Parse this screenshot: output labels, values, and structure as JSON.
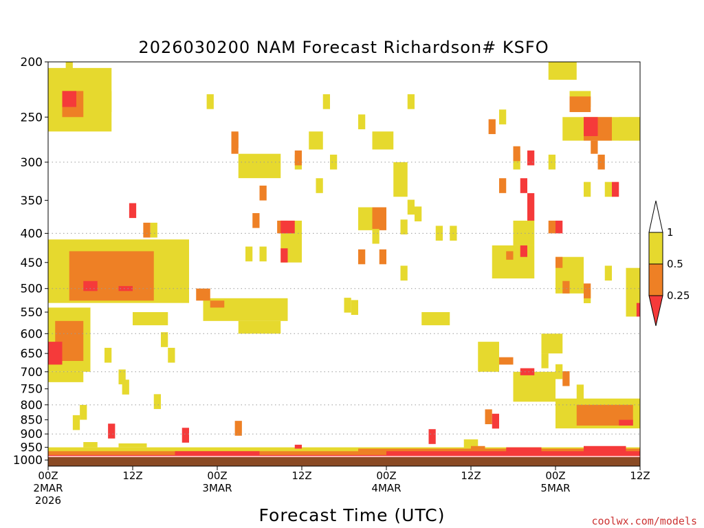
{
  "chart_data": {
    "type": "heatmap",
    "title": "2026030200 NAM Forecast Richardson# KSFO",
    "xlabel": "Forecast Time (UTC)",
    "credit": "coolwx.com/models",
    "y_ticks": [
      "200",
      "250",
      "300",
      "350",
      "400",
      "450",
      "500",
      "550",
      "600",
      "650",
      "700",
      "750",
      "800",
      "850",
      "900",
      "950",
      "1000"
    ],
    "y_range_hpa": [
      1000,
      200
    ],
    "x_range_hours": [
      0,
      84
    ],
    "x_ticks": [
      {
        "hour": 0,
        "line1": "00Z",
        "line2": "2MAR",
        "line3": "2026"
      },
      {
        "hour": 12,
        "line1": "12Z",
        "line2": "",
        "line3": ""
      },
      {
        "hour": 24,
        "line1": "00Z",
        "line2": "3MAR",
        "line3": ""
      },
      {
        "hour": 36,
        "line1": "12Z",
        "line2": "",
        "line3": ""
      },
      {
        "hour": 48,
        "line1": "00Z",
        "line2": "4MAR",
        "line3": ""
      },
      {
        "hour": 60,
        "line1": "12Z",
        "line2": "",
        "line3": ""
      },
      {
        "hour": 72,
        "line1": "00Z",
        "line2": "5MAR",
        "line3": ""
      },
      {
        "hour": 84,
        "line1": "12Z",
        "line2": "",
        "line3": ""
      }
    ],
    "dotted_gridlines_hpa": [
      300,
      400,
      500,
      600,
      700,
      800,
      900,
      1000
    ],
    "colorbar": {
      "labels": [
        "1",
        "0.5",
        "0.25"
      ],
      "levels": [
        {
          "range": "0.5–1",
          "color": "#e6d92e"
        },
        {
          "range": "0.25–0.5",
          "color": "#ee8025"
        },
        {
          "range": "0–0.25",
          "color": "#f53a3a"
        }
      ]
    },
    "colors": {
      "low": "#f53a3a",
      "mid": "#ee8025",
      "high": "#e6d92e",
      "ground": "#8a4a24"
    },
    "regions": [
      {
        "cls": "high",
        "t": [
          0,
          9
        ],
        "p": [
          205,
          265
        ]
      },
      {
        "cls": "mid",
        "t": [
          2,
          5
        ],
        "p": [
          225,
          250
        ]
      },
      {
        "cls": "low",
        "t": [
          2,
          4
        ],
        "p": [
          225,
          240
        ]
      },
      {
        "cls": "high",
        "t": [
          5,
          9
        ],
        "p": [
          225,
          245
        ]
      },
      {
        "cls": "high",
        "t": [
          2.5,
          3.5
        ],
        "p": [
          200,
          212
        ]
      },
      {
        "cls": "high",
        "t": [
          0,
          20
        ],
        "p": [
          410,
          530
        ]
      },
      {
        "cls": "mid",
        "t": [
          3,
          15
        ],
        "p": [
          430,
          525
        ]
      },
      {
        "cls": "low",
        "t": [
          5,
          7
        ],
        "p": [
          485,
          505
        ]
      },
      {
        "cls": "low",
        "t": [
          10,
          12
        ],
        "p": [
          495,
          505
        ]
      },
      {
        "cls": "high",
        "t": [
          0,
          6
        ],
        "p": [
          540,
          700
        ]
      },
      {
        "cls": "mid",
        "t": [
          1,
          5
        ],
        "p": [
          570,
          670
        ]
      },
      {
        "cls": "low",
        "t": [
          0,
          2
        ],
        "p": [
          620,
          680
        ]
      },
      {
        "cls": "high",
        "t": [
          0,
          5
        ],
        "p": [
          700,
          730
        ]
      },
      {
        "cls": "high",
        "t": [
          12,
          17
        ],
        "p": [
          550,
          580
        ]
      },
      {
        "cls": "high",
        "t": [
          22,
          34
        ],
        "p": [
          520,
          570
        ]
      },
      {
        "cls": "mid",
        "t": [
          21,
          23
        ],
        "p": [
          500,
          525
        ]
      },
      {
        "cls": "mid",
        "t": [
          23,
          25
        ],
        "p": [
          525,
          540
        ]
      },
      {
        "cls": "high",
        "t": [
          27,
          33
        ],
        "p": [
          570,
          600
        ]
      },
      {
        "cls": "high",
        "t": [
          27,
          33
        ],
        "p": [
          290,
          320
        ]
      },
      {
        "cls": "mid",
        "t": [
          26,
          27
        ],
        "p": [
          265,
          290
        ]
      },
      {
        "cls": "high",
        "t": [
          33,
          36
        ],
        "p": [
          380,
          450
        ]
      },
      {
        "cls": "mid",
        "t": [
          32.5,
          34
        ],
        "p": [
          380,
          400
        ]
      },
      {
        "cls": "low",
        "t": [
          33,
          35
        ],
        "p": [
          380,
          400
        ]
      },
      {
        "cls": "low",
        "t": [
          33,
          34
        ],
        "p": [
          425,
          450
        ]
      },
      {
        "cls": "high",
        "t": [
          37,
          39
        ],
        "p": [
          265,
          285
        ]
      },
      {
        "cls": "high",
        "t": [
          44,
          46
        ],
        "p": [
          360,
          395
        ]
      },
      {
        "cls": "mid",
        "t": [
          46,
          48
        ],
        "p": [
          360,
          395
        ]
      },
      {
        "cls": "high",
        "t": [
          46,
          49
        ],
        "p": [
          265,
          285
        ]
      },
      {
        "cls": "high",
        "t": [
          49,
          51
        ],
        "p": [
          300,
          345
        ]
      },
      {
        "cls": "high",
        "t": [
          53,
          57
        ],
        "p": [
          550,
          580
        ]
      },
      {
        "cls": "high",
        "t": [
          71,
          75
        ],
        "p": [
          200,
          215
        ]
      },
      {
        "cls": "high",
        "t": [
          74,
          77
        ],
        "p": [
          225,
          240
        ]
      },
      {
        "cls": "mid",
        "t": [
          74,
          77
        ],
        "p": [
          230,
          245
        ]
      },
      {
        "cls": "high",
        "t": [
          73,
          84
        ],
        "p": [
          250,
          275
        ]
      },
      {
        "cls": "mid",
        "t": [
          76,
          80
        ],
        "p": [
          250,
          275
        ]
      },
      {
        "cls": "low",
        "t": [
          76,
          78
        ],
        "p": [
          250,
          270
        ]
      },
      {
        "cls": "mid",
        "t": [
          77,
          78
        ],
        "p": [
          275,
          290
        ]
      },
      {
        "cls": "high",
        "t": [
          81,
          84
        ],
        "p": [
          250,
          275
        ]
      },
      {
        "cls": "high",
        "t": [
          63,
          69
        ],
        "p": [
          420,
          480
        ]
      },
      {
        "cls": "mid",
        "t": [
          65,
          66
        ],
        "p": [
          430,
          445
        ]
      },
      {
        "cls": "low",
        "t": [
          67,
          68
        ],
        "p": [
          420,
          440
        ]
      },
      {
        "cls": "high",
        "t": [
          66,
          69
        ],
        "p": [
          380,
          420
        ]
      },
      {
        "cls": "low",
        "t": [
          68,
          69
        ],
        "p": [
          340,
          380
        ]
      },
      {
        "cls": "high",
        "t": [
          72,
          76
        ],
        "p": [
          440,
          510
        ]
      },
      {
        "cls": "mid",
        "t": [
          72,
          73
        ],
        "p": [
          440,
          460
        ]
      },
      {
        "cls": "mid",
        "t": [
          73,
          74
        ],
        "p": [
          485,
          510
        ]
      },
      {
        "cls": "mid",
        "t": [
          71,
          72
        ],
        "p": [
          380,
          400
        ]
      },
      {
        "cls": "low",
        "t": [
          72,
          73
        ],
        "p": [
          380,
          400
        ]
      },
      {
        "cls": "high",
        "t": [
          61,
          64
        ],
        "p": [
          620,
          700
        ]
      },
      {
        "cls": "mid",
        "t": [
          64,
          66
        ],
        "p": [
          660,
          680
        ]
      },
      {
        "cls": "low",
        "t": [
          67,
          69
        ],
        "p": [
          690,
          710
        ]
      },
      {
        "cls": "high",
        "t": [
          66,
          72
        ],
        "p": [
          700,
          790
        ]
      },
      {
        "cls": "high",
        "t": [
          72,
          84
        ],
        "p": [
          780,
          880
        ]
      },
      {
        "cls": "mid",
        "t": [
          75,
          83
        ],
        "p": [
          800,
          870
        ]
      },
      {
        "cls": "low",
        "t": [
          81,
          83
        ],
        "p": [
          850,
          870
        ]
      },
      {
        "cls": "high",
        "t": [
          70,
          73
        ],
        "p": [
          600,
          650
        ]
      },
      {
        "cls": "high",
        "t": [
          82,
          84
        ],
        "p": [
          460,
          560
        ]
      },
      {
        "cls": "low",
        "t": [
          83.5,
          84
        ],
        "p": [
          530,
          560
        ]
      },
      {
        "cls": "high",
        "t": [
          59,
          61
        ],
        "p": [
          920,
          980
        ]
      },
      {
        "cls": "mid",
        "t": [
          60,
          62
        ],
        "p": [
          945,
          985
        ]
      },
      {
        "cls": "high",
        "t": [
          0,
          84
        ],
        "p": [
          950,
          985
        ]
      },
      {
        "cls": "mid",
        "t": [
          0,
          84
        ],
        "p": [
          965,
          990
        ]
      },
      {
        "cls": "low",
        "t": [
          0,
          84
        ],
        "p": [
          980,
          1000
        ]
      },
      {
        "cls": "low",
        "t": [
          18,
          30
        ],
        "p": [
          965,
          1000
        ]
      },
      {
        "cls": "mid",
        "t": [
          44,
          84
        ],
        "p": [
          955,
          975
        ]
      },
      {
        "cls": "low",
        "t": [
          48,
          84
        ],
        "p": [
          965,
          1000
        ]
      },
      {
        "cls": "low",
        "t": [
          65,
          70
        ],
        "p": [
          950,
          1000
        ]
      },
      {
        "cls": "low",
        "t": [
          76,
          82
        ],
        "p": [
          945,
          1000
        ]
      },
      {
        "cls": "low",
        "t": [
          35,
          36
        ],
        "p": [
          940,
          955
        ]
      },
      {
        "cls": "high",
        "t": [
          5,
          7
        ],
        "p": [
          930,
          950
        ]
      },
      {
        "cls": "high",
        "t": [
          10,
          14
        ],
        "p": [
          935,
          950
        ]
      }
    ],
    "cells": [
      {
        "cls": "high",
        "t": 23,
        "p": 235
      },
      {
        "cls": "mid",
        "t": 26.5,
        "p": 275
      },
      {
        "cls": "high",
        "t": 39.5,
        "p": 235
      },
      {
        "cls": "high",
        "t": 44.5,
        "p": 255
      },
      {
        "cls": "high",
        "t": 51.5,
        "p": 235
      },
      {
        "cls": "high",
        "t": 51.5,
        "p": 360
      },
      {
        "cls": "low",
        "t": 12,
        "p": 365
      },
      {
        "cls": "mid",
        "t": 14,
        "p": 395
      },
      {
        "cls": "high",
        "t": 15,
        "p": 395
      },
      {
        "cls": "mid",
        "t": 30.5,
        "p": 340
      },
      {
        "cls": "mid",
        "t": 29.5,
        "p": 380
      },
      {
        "cls": "high",
        "t": 28.5,
        "p": 435
      },
      {
        "cls": "high",
        "t": 30.5,
        "p": 435
      },
      {
        "cls": "high",
        "t": 35.5,
        "p": 300
      },
      {
        "cls": "mid",
        "t": 35.5,
        "p": 295
      },
      {
        "cls": "high",
        "t": 40.5,
        "p": 300
      },
      {
        "cls": "high",
        "t": 38.5,
        "p": 330
      },
      {
        "cls": "mid",
        "t": 44.5,
        "p": 440
      },
      {
        "cls": "mid",
        "t": 47.5,
        "p": 440
      },
      {
        "cls": "high",
        "t": 46.5,
        "p": 405
      },
      {
        "cls": "high",
        "t": 50.5,
        "p": 390
      },
      {
        "cls": "high",
        "t": 52.5,
        "p": 370
      },
      {
        "cls": "high",
        "t": 55.5,
        "p": 400
      },
      {
        "cls": "high",
        "t": 57.5,
        "p": 400
      },
      {
        "cls": "high",
        "t": 50.5,
        "p": 470
      },
      {
        "cls": "high",
        "t": 42.5,
        "p": 535
      },
      {
        "cls": "mid",
        "t": 63,
        "p": 260
      },
      {
        "cls": "high",
        "t": 64.5,
        "p": 250
      },
      {
        "cls": "high",
        "t": 66.5,
        "p": 300
      },
      {
        "cls": "mid",
        "t": 64.5,
        "p": 330
      },
      {
        "cls": "low",
        "t": 67.5,
        "p": 330
      },
      {
        "cls": "mid",
        "t": 66.5,
        "p": 290
      },
      {
        "cls": "low",
        "t": 68.5,
        "p": 295
      },
      {
        "cls": "high",
        "t": 71.5,
        "p": 300
      },
      {
        "cls": "high",
        "t": 76.5,
        "p": 335
      },
      {
        "cls": "mid",
        "t": 78.5,
        "p": 300
      },
      {
        "cls": "high",
        "t": 79.5,
        "p": 335
      },
      {
        "cls": "low",
        "t": 80.5,
        "p": 335
      },
      {
        "cls": "high",
        "t": 79.5,
        "p": 470
      },
      {
        "cls": "high",
        "t": 76.5,
        "p": 515
      },
      {
        "cls": "mid",
        "t": 76.5,
        "p": 505
      },
      {
        "cls": "high",
        "t": 70.5,
        "p": 670
      },
      {
        "cls": "high",
        "t": 72.5,
        "p": 700
      },
      {
        "cls": "mid",
        "t": 73.5,
        "p": 720
      },
      {
        "cls": "high",
        "t": 75.5,
        "p": 760
      },
      {
        "cls": "high",
        "t": 5,
        "p": 825
      },
      {
        "cls": "high",
        "t": 15.5,
        "p": 790
      },
      {
        "cls": "high",
        "t": 4,
        "p": 860
      },
      {
        "cls": "high",
        "t": 8.5,
        "p": 655
      },
      {
        "cls": "high",
        "t": 10.5,
        "p": 715
      },
      {
        "cls": "high",
        "t": 11,
        "p": 745
      },
      {
        "cls": "high",
        "t": 17.5,
        "p": 655
      },
      {
        "cls": "high",
        "t": 16.5,
        "p": 615
      },
      {
        "cls": "high",
        "t": 43.5,
        "p": 540
      },
      {
        "cls": "mid",
        "t": 62.5,
        "p": 840
      },
      {
        "cls": "low",
        "t": 63.5,
        "p": 855
      },
      {
        "cls": "low",
        "t": 9,
        "p": 890
      },
      {
        "cls": "mid",
        "t": 27,
        "p": 880
      },
      {
        "cls": "low",
        "t": 19.5,
        "p": 905
      },
      {
        "cls": "low",
        "t": 54.5,
        "p": 910
      }
    ]
  }
}
